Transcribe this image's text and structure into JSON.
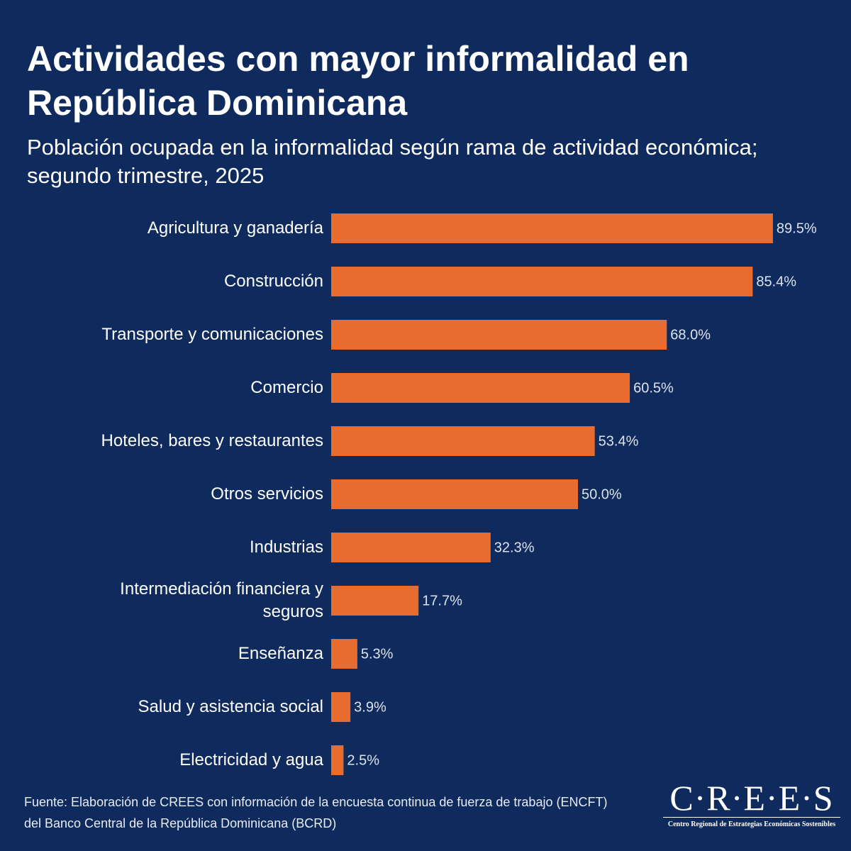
{
  "chart_data": {
    "type": "barh",
    "title": "Actividades con mayor informalidad en República Dominicana",
    "subtitle": "Población ocupada en la informalidad según rama de actividad económica; segundo trimestre, 2025",
    "categories": [
      "Agricultura y ganadería",
      "Construcción",
      "Transporte y comunicaciones",
      "Comercio",
      "Hoteles, bares y restaurantes",
      "Otros servicios",
      "Industrias",
      "Intermediación financiera y seguros",
      "Enseñanza",
      "Salud y asistencia social",
      "Electricidad y agua"
    ],
    "values": [
      89.5,
      85.4,
      68.0,
      60.5,
      53.4,
      50.0,
      32.3,
      17.7,
      5.3,
      3.9,
      2.5
    ],
    "value_labels": [
      "89.5%",
      "85.4%",
      "68.0%",
      "60.5%",
      "53.4%",
      "50.0%",
      "32.3%",
      "17.7%",
      "5.3%",
      "3.9%",
      "2.5%"
    ],
    "color": "#e86c30",
    "xlim": [
      0,
      100
    ],
    "source": "Fuente: Elaboración de CREES con información de la encuesta continua de fuerza de trabajo (ENCFT) del Banco Central de la República Dominicana (BCRD)",
    "logo": {
      "name": "C·R·E·E·S",
      "tagline": "Centro Regional de Estrategias Económicas Sostenibles"
    }
  }
}
